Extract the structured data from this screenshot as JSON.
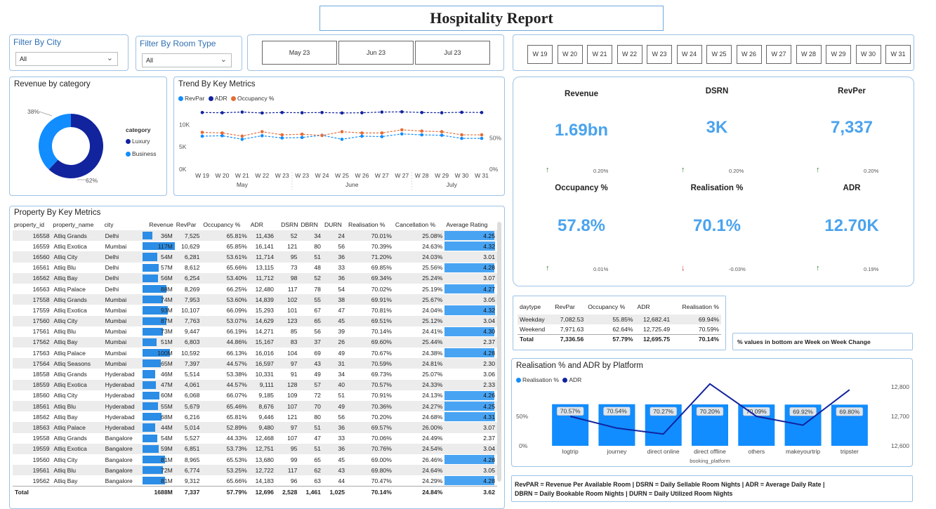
{
  "report_title": "Hospitality Report",
  "filters": {
    "city": {
      "title": "Filter By City",
      "value": "All"
    },
    "room_type": {
      "title": "Filter By Room Type",
      "value": "All"
    }
  },
  "months": [
    "May 23",
    "Jun 23",
    "Jul 23"
  ],
  "weeks": [
    "W 19",
    "W 20",
    "W 21",
    "W 22",
    "W 23",
    "W 24",
    "W 25",
    "W 26",
    "W 27",
    "W 28",
    "W 29",
    "W 30",
    "W 31"
  ],
  "revenue_by_category": {
    "title": "Revenue by category",
    "legend_title": "category",
    "slices": [
      {
        "name": "Luxury",
        "value": 62,
        "label": "62%",
        "color": "#12239e"
      },
      {
        "name": "Business",
        "value": 38,
        "label": "38%",
        "color": "#118dff"
      }
    ]
  },
  "trend": {
    "title": "Trend By Key Metrics",
    "legend": [
      {
        "name": "RevPar",
        "color": "#118dff"
      },
      {
        "name": "ADR",
        "color": "#12239e"
      },
      {
        "name": "Occupancy %",
        "color": "#e66c37"
      }
    ],
    "y_left_ticks": [
      "10K",
      "5K",
      "0K"
    ],
    "y_right_ticks": [
      "50%",
      "0%"
    ],
    "month_labels": [
      "May",
      "June",
      "July"
    ],
    "chart_data": {
      "type": "line",
      "x": [
        "W 19",
        "W 20",
        "W 21",
        "W 22",
        "W 23",
        "W 23",
        "W 24",
        "W 25",
        "W 26",
        "W 27",
        "W 27",
        "W 28",
        "W 29",
        "W 30",
        "W 31"
      ],
      "series": [
        {
          "name": "RevPar",
          "values": [
            7400,
            7500,
            6700,
            7500,
            7000,
            7100,
            7600,
            6700,
            7400,
            7300,
            7900,
            7700,
            7600,
            6900,
            6900
          ]
        },
        {
          "name": "ADR",
          "values": [
            12700,
            12650,
            12800,
            12600,
            12700,
            12650,
            12700,
            12600,
            12650,
            12800,
            12850,
            12700,
            12650,
            12750,
            12700
          ]
        },
        {
          "name": "Occupancy %",
          "values": [
            59,
            58,
            53,
            60,
            55,
            56,
            54,
            60,
            58,
            58,
            63,
            61,
            60,
            55,
            55
          ]
        }
      ],
      "ylim_left": [
        0,
        14000
      ],
      "ylim_right": [
        0,
        100
      ]
    }
  },
  "kpis": [
    {
      "label": "Revenue",
      "value": "1.69bn",
      "change": "0.20%",
      "direction": "up"
    },
    {
      "label": "DSRN",
      "value": "3K",
      "change": "0.20%",
      "direction": "up"
    },
    {
      "label": "RevPer",
      "value": "7,337",
      "change": "0.20%",
      "direction": "up"
    },
    {
      "label": "Occupancy %",
      "value": "57.8%",
      "change": "0.01%",
      "direction": "up"
    },
    {
      "label": "Realisation %",
      "value": "70.1%",
      "change": "-0.03%",
      "direction": "down"
    },
    {
      "label": "ADR",
      "value": "12.70K",
      "change": "0.19%",
      "direction": "up"
    }
  ],
  "property_table": {
    "title": "Property By Key Metrics",
    "columns": [
      "property_id",
      "property_name",
      "city",
      "Revenue",
      "RevPar",
      "Occupancy %",
      "ADR",
      "DSRN",
      "DBRN",
      "DURN",
      "Realisation %",
      "Cancellation %",
      "Average Rating"
    ],
    "rows": [
      {
        "id": "16558",
        "name": "Atliq Grands",
        "city": "Delhi",
        "revenue": "36M",
        "rev_frac": 0.31,
        "revpar": "7,525",
        "occ": "65.81%",
        "adr": "11,436",
        "dsrn": "52",
        "dbrn": "34",
        "durn": "24",
        "real": "70.01%",
        "canc": "25.08%",
        "rating": "4.25",
        "rating_frac": 0.94
      },
      {
        "id": "16559",
        "name": "Atliq Exotica",
        "city": "Mumbai",
        "revenue": "117M",
        "rev_frac": 1.0,
        "revpar": "10,629",
        "occ": "65.85%",
        "adr": "16,141",
        "dsrn": "121",
        "dbrn": "80",
        "durn": "56",
        "real": "70.39%",
        "canc": "24.63%",
        "rating": "4.32",
        "rating_frac": 0.96
      },
      {
        "id": "16560",
        "name": "Atliq City",
        "city": "Delhi",
        "revenue": "54M",
        "rev_frac": 0.46,
        "revpar": "6,281",
        "occ": "53.61%",
        "adr": "11,714",
        "dsrn": "95",
        "dbrn": "51",
        "durn": "36",
        "real": "71.20%",
        "canc": "24.03%",
        "rating": "3.01",
        "rating_frac": 0.0
      },
      {
        "id": "16561",
        "name": "Atliq Blu",
        "city": "Delhi",
        "revenue": "57M",
        "rev_frac": 0.49,
        "revpar": "8,612",
        "occ": "65.66%",
        "adr": "13,115",
        "dsrn": "73",
        "dbrn": "48",
        "durn": "33",
        "real": "69.85%",
        "canc": "25.56%",
        "rating": "4.28",
        "rating_frac": 0.95
      },
      {
        "id": "16562",
        "name": "Atliq Bay",
        "city": "Delhi",
        "revenue": "56M",
        "rev_frac": 0.48,
        "revpar": "6,254",
        "occ": "53.40%",
        "adr": "11,712",
        "dsrn": "98",
        "dbrn": "52",
        "durn": "36",
        "real": "69.34%",
        "canc": "25.24%",
        "rating": "3.07",
        "rating_frac": 0.0
      },
      {
        "id": "16563",
        "name": "Atliq Palace",
        "city": "Delhi",
        "revenue": "88M",
        "rev_frac": 0.75,
        "revpar": "8,269",
        "occ": "66.25%",
        "adr": "12,480",
        "dsrn": "117",
        "dbrn": "78",
        "durn": "54",
        "real": "70.02%",
        "canc": "25.19%",
        "rating": "4.27",
        "rating_frac": 0.95
      },
      {
        "id": "17558",
        "name": "Atliq Grands",
        "city": "Mumbai",
        "revenue": "74M",
        "rev_frac": 0.63,
        "revpar": "7,953",
        "occ": "53.60%",
        "adr": "14,839",
        "dsrn": "102",
        "dbrn": "55",
        "durn": "38",
        "real": "69.91%",
        "canc": "25.67%",
        "rating": "3.05",
        "rating_frac": 0.0
      },
      {
        "id": "17559",
        "name": "Atliq Exotica",
        "city": "Mumbai",
        "revenue": "93M",
        "rev_frac": 0.79,
        "revpar": "10,107",
        "occ": "66.09%",
        "adr": "15,293",
        "dsrn": "101",
        "dbrn": "67",
        "durn": "47",
        "real": "70.81%",
        "canc": "24.04%",
        "rating": "4.32",
        "rating_frac": 0.96
      },
      {
        "id": "17560",
        "name": "Atliq City",
        "city": "Mumbai",
        "revenue": "87M",
        "rev_frac": 0.74,
        "revpar": "7,763",
        "occ": "53.07%",
        "adr": "14,629",
        "dsrn": "123",
        "dbrn": "65",
        "durn": "45",
        "real": "69.51%",
        "canc": "25.12%",
        "rating": "3.04",
        "rating_frac": 0.0
      },
      {
        "id": "17561",
        "name": "Atliq Blu",
        "city": "Mumbai",
        "revenue": "73M",
        "rev_frac": 0.62,
        "revpar": "9,447",
        "occ": "66.19%",
        "adr": "14,271",
        "dsrn": "85",
        "dbrn": "56",
        "durn": "39",
        "real": "70.14%",
        "canc": "24.41%",
        "rating": "4.30",
        "rating_frac": 0.95
      },
      {
        "id": "17562",
        "name": "Atliq Bay",
        "city": "Mumbai",
        "revenue": "51M",
        "rev_frac": 0.44,
        "revpar": "6,803",
        "occ": "44.86%",
        "adr": "15,167",
        "dsrn": "83",
        "dbrn": "37",
        "durn": "26",
        "real": "69.60%",
        "canc": "25.44%",
        "rating": "2.37",
        "rating_frac": 0.0
      },
      {
        "id": "17563",
        "name": "Atliq Palace",
        "city": "Mumbai",
        "revenue": "100M",
        "rev_frac": 0.85,
        "revpar": "10,592",
        "occ": "66.13%",
        "adr": "16,016",
        "dsrn": "104",
        "dbrn": "69",
        "durn": "49",
        "real": "70.67%",
        "canc": "24.38%",
        "rating": "4.28",
        "rating_frac": 0.95
      },
      {
        "id": "17564",
        "name": "Atliq Seasons",
        "city": "Mumbai",
        "revenue": "65M",
        "rev_frac": 0.56,
        "revpar": "7,397",
        "occ": "44.57%",
        "adr": "16,597",
        "dsrn": "97",
        "dbrn": "43",
        "durn": "31",
        "real": "70.59%",
        "canc": "24.81%",
        "rating": "2.30",
        "rating_frac": 0.0
      },
      {
        "id": "18558",
        "name": "Atliq Grands",
        "city": "Hyderabad",
        "revenue": "46M",
        "rev_frac": 0.39,
        "revpar": "5,514",
        "occ": "53.38%",
        "adr": "10,331",
        "dsrn": "91",
        "dbrn": "49",
        "durn": "34",
        "real": "69.73%",
        "canc": "25.07%",
        "rating": "3.06",
        "rating_frac": 0.0
      },
      {
        "id": "18559",
        "name": "Atliq Exotica",
        "city": "Hyderabad",
        "revenue": "47M",
        "rev_frac": 0.4,
        "revpar": "4,061",
        "occ": "44.57%",
        "adr": "9,111",
        "dsrn": "128",
        "dbrn": "57",
        "durn": "40",
        "real": "70.57%",
        "canc": "24.33%",
        "rating": "2.33",
        "rating_frac": 0.0
      },
      {
        "id": "18560",
        "name": "Atliq City",
        "city": "Hyderabad",
        "revenue": "60M",
        "rev_frac": 0.51,
        "revpar": "6,068",
        "occ": "66.07%",
        "adr": "9,185",
        "dsrn": "109",
        "dbrn": "72",
        "durn": "51",
        "real": "70.91%",
        "canc": "24.13%",
        "rating": "4.26",
        "rating_frac": 0.94
      },
      {
        "id": "18561",
        "name": "Atliq Blu",
        "city": "Hyderabad",
        "revenue": "55M",
        "rev_frac": 0.47,
        "revpar": "5,679",
        "occ": "65.46%",
        "adr": "8,676",
        "dsrn": "107",
        "dbrn": "70",
        "durn": "49",
        "real": "70.36%",
        "canc": "24.27%",
        "rating": "4.25",
        "rating_frac": 0.94
      },
      {
        "id": "18562",
        "name": "Atliq Bay",
        "city": "Hyderabad",
        "revenue": "68M",
        "rev_frac": 0.58,
        "revpar": "6,216",
        "occ": "65.81%",
        "adr": "9,446",
        "dsrn": "121",
        "dbrn": "80",
        "durn": "56",
        "real": "70.20%",
        "canc": "24.68%",
        "rating": "4.31",
        "rating_frac": 0.96
      },
      {
        "id": "18563",
        "name": "Atliq Palace",
        "city": "Hyderabad",
        "revenue": "44M",
        "rev_frac": 0.38,
        "revpar": "5,014",
        "occ": "52.89%",
        "adr": "9,480",
        "dsrn": "97",
        "dbrn": "51",
        "durn": "36",
        "real": "69.57%",
        "canc": "26.00%",
        "rating": "3.07",
        "rating_frac": 0.0
      },
      {
        "id": "19558",
        "name": "Atliq Grands",
        "city": "Bangalore",
        "revenue": "54M",
        "rev_frac": 0.46,
        "revpar": "5,527",
        "occ": "44.33%",
        "adr": "12,468",
        "dsrn": "107",
        "dbrn": "47",
        "durn": "33",
        "real": "70.06%",
        "canc": "24.49%",
        "rating": "2.37",
        "rating_frac": 0.0
      },
      {
        "id": "19559",
        "name": "Atliq Exotica",
        "city": "Bangalore",
        "revenue": "59M",
        "rev_frac": 0.5,
        "revpar": "6,851",
        "occ": "53.73%",
        "adr": "12,751",
        "dsrn": "95",
        "dbrn": "51",
        "durn": "36",
        "real": "70.76%",
        "canc": "24.54%",
        "rating": "3.04",
        "rating_frac": 0.0
      },
      {
        "id": "19560",
        "name": "Atliq City",
        "city": "Bangalore",
        "revenue": "81M",
        "rev_frac": 0.69,
        "revpar": "8,965",
        "occ": "65.53%",
        "adr": "13,680",
        "dsrn": "99",
        "dbrn": "65",
        "durn": "45",
        "real": "69.00%",
        "canc": "26.46%",
        "rating": "4.28",
        "rating_frac": 0.95
      },
      {
        "id": "19561",
        "name": "Atliq Blu",
        "city": "Bangalore",
        "revenue": "72M",
        "rev_frac": 0.62,
        "revpar": "6,774",
        "occ": "53.25%",
        "adr": "12,722",
        "dsrn": "117",
        "dbrn": "62",
        "durn": "43",
        "real": "69.80%",
        "canc": "24.64%",
        "rating": "3.05",
        "rating_frac": 0.0
      },
      {
        "id": "19562",
        "name": "Atliq Bay",
        "city": "Bangalore",
        "revenue": "81M",
        "rev_frac": 0.69,
        "revpar": "9,312",
        "occ": "65.66%",
        "adr": "14,183",
        "dsrn": "96",
        "dbrn": "63",
        "durn": "44",
        "real": "70.47%",
        "canc": "24.29%",
        "rating": "4.28",
        "rating_frac": 0.95
      }
    ],
    "total": {
      "label": "Total",
      "revenue": "1688M",
      "revpar": "7,337",
      "occ": "57.79%",
      "adr": "12,696",
      "dsrn": "2,528",
      "dbrn": "1,461",
      "durn": "1,025",
      "real": "70.14%",
      "canc": "24.84%",
      "rating": "3.62"
    }
  },
  "daytype_table": {
    "columns": [
      "daytype",
      "RevPar",
      "Occupancy %",
      "ADR",
      "Realisation %"
    ],
    "rows": [
      {
        "daytype": "Weekday",
        "revpar": "7,082.53",
        "occ": "55.85%",
        "adr": "12,682.41",
        "real": "69.94%"
      },
      {
        "daytype": "Weekend",
        "revpar": "7,971.63",
        "occ": "62.64%",
        "adr": "12,725.49",
        "real": "70.59%"
      }
    ],
    "total": {
      "daytype": "Total",
      "revpar": "7,336.56",
      "occ": "57.79%",
      "adr": "12,695.75",
      "real": "70.14%"
    }
  },
  "note_wow": "% values in bottom are Week on Week Change",
  "platform": {
    "title": "Realisation % and ADR by Platform",
    "legend": [
      {
        "name": "Realisation %",
        "color": "#118dff"
      },
      {
        "name": "ADR",
        "color": "#12239e"
      }
    ],
    "x_axis_title": "booking_platform",
    "y_left_ticks": [
      "50%",
      "0%"
    ],
    "y_right_ticks": [
      "12,800",
      "12,700",
      "12,600"
    ],
    "chart_data": {
      "type": "bar",
      "categories": [
        "logtrip",
        "journey",
        "direct online",
        "direct offline",
        "others",
        "makeyourtrip",
        "tripster"
      ],
      "series": [
        {
          "name": "Realisation %",
          "values": [
            70.57,
            70.54,
            70.27,
            70.2,
            70.09,
            69.92,
            69.8
          ],
          "labels": [
            "70.57%",
            "70.54%",
            "70.27%",
            "70.20%",
            "70.09%",
            "69.92%",
            "69.80%"
          ]
        },
        {
          "name": "ADR",
          "values": [
            12700,
            12660,
            12640,
            12810,
            12700,
            12670,
            12790
          ]
        }
      ],
      "ylim_left": [
        0,
        100
      ],
      "ylim_right": [
        12600,
        12800
      ]
    }
  },
  "glossary": {
    "line1": "RevPAR = Revenue Per Available Room | DSRN = Daily Sellable Room Nights | ADR = Average Daily Rate |",
    "line2": "DBRN = Daily Bookable Room Nights | DURN = Daily Utilized Room Nights"
  }
}
